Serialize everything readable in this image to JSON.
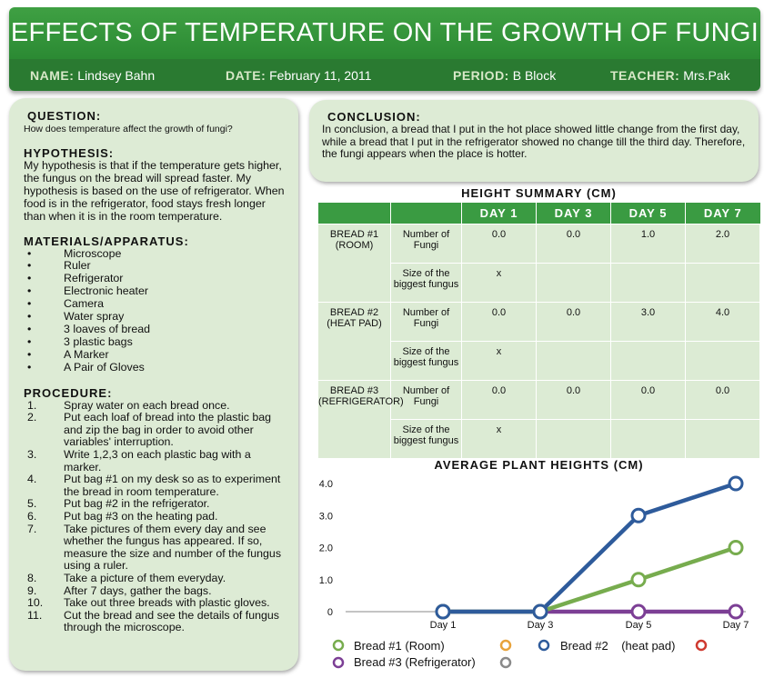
{
  "header": {
    "title": "EFFECTS OF TEMPERATURE ON THE GROWTH OF FUNGI",
    "name_key": "NAME:",
    "name_val": " Lindsey Bahn",
    "date_key": "DATE:",
    "date_val": " February 11, 2011",
    "period_key": "PERIOD:",
    "period_val": " B Block",
    "teacher_key": "TEACHER:",
    "teacher_val": " Mrs.Pak"
  },
  "question": {
    "heading": "QUESTION:",
    "text": "How does temperature affect the growth of fungi?"
  },
  "hypothesis": {
    "heading": "HYPOTHESIS:",
    "text": "My hypothesis is that if the temperature gets higher, the fungus on the bread will spread faster. My hypothesis is based on the use of refrigerator. When food is in the refrigerator, food stays fresh longer than when it is in the room temperature."
  },
  "materials": {
    "heading": "MATERIALS/APPARATUS:",
    "bullet": "•",
    "items": [
      "Microscope",
      "Ruler",
      "Refrigerator",
      "Electronic heater",
      "Camera",
      "Water spray",
      "3 loaves of bread",
      "3 plastic bags",
      "A Marker",
      "A Pair of Gloves"
    ]
  },
  "procedure": {
    "heading": "PROCEDURE:",
    "items": [
      {
        "n": "1.",
        "t": "Spray water on each bread once."
      },
      {
        "n": "2.",
        "t": "Put each loaf of bread into the plastic bag and zip the bag in order to avoid other variables' interruption."
      },
      {
        "n": "3.",
        "t": "Write 1,2,3 on each plastic bag with a marker."
      },
      {
        "n": "4.",
        "t": "Put bag #1 on my desk so as to experiment the bread in room temperature."
      },
      {
        "n": "5.",
        "t": "Put bag #2 in the refrigerator."
      },
      {
        "n": "6.",
        "t": "Put bag #3 on the heating pad."
      },
      {
        "n": "7.",
        "t": "Take pictures of them every day and see whether the fungus has appeared. If so, measure the size and number of the fungus using a ruler."
      },
      {
        "n": "8.",
        "t": "Take a picture of them everyday."
      },
      {
        "n": "9.",
        "t": "After 7 days, gather the bags."
      },
      {
        "n": "10.",
        "t": "Take out three breads with plastic gloves."
      },
      {
        "n": "11.",
        "t": "Cut the bread and see the details of fungus through the microscope."
      }
    ]
  },
  "conclusion": {
    "heading": "CONCLUSION:",
    "text": "In conclusion, a bread that I put in the hot place showed little change from the first day, while a bread that I put in the refrigerator showed no change till the third day. Therefore, the fungi appears when the place is hotter."
  },
  "table": {
    "title": "HEIGHT SUMMARY (CM)",
    "headers": [
      "",
      "",
      "DAY 1",
      "DAY 3",
      "DAY 5",
      "DAY 7"
    ],
    "rows": [
      [
        "BREAD #1 (ROOM)",
        "Number of Fungi",
        "0.0",
        "0.0",
        "1.0",
        "2.0"
      ],
      [
        "",
        "Size of the biggest fungus",
        "x",
        "",
        "",
        ""
      ],
      [
        "BREAD #2 (HEAT PAD)",
        "Number of Fungi",
        "0.0",
        "0.0",
        "3.0",
        "4.0"
      ],
      [
        "",
        "Size of the biggest fungus",
        "x",
        "",
        "",
        ""
      ],
      [
        "BREAD #3 (REFRIGERATOR)",
        "Number of Fungi",
        "0.0",
        "0.0",
        "0.0",
        "0.0"
      ],
      [
        "",
        "Size of the biggest fungus",
        "x",
        "",
        "",
        ""
      ]
    ]
  },
  "chart_data": {
    "type": "line",
    "title": "AVERAGE PLANT HEIGHTS (CM)",
    "categories": [
      "Day 1",
      "Day 3",
      "Day 5",
      "Day 7"
    ],
    "yticks": [
      "0",
      "1.0",
      "2.0",
      "3.0",
      "4.0"
    ],
    "ylim": [
      0,
      4
    ],
    "grid": false,
    "legend_position": "bottom",
    "series": [
      {
        "name": "Bread #1 (Room)",
        "color": "#77ac4e",
        "values": [
          0,
          0,
          1,
          2
        ]
      },
      {
        "name": "Bread #2    (heat pad)",
        "color": "#2e5b9b",
        "values": [
          0,
          0,
          3,
          4
        ]
      },
      {
        "name": "Bread #3 (Refrigerator)",
        "color": "#7c3f95",
        "values": [
          0,
          0,
          0,
          0
        ]
      }
    ],
    "legend_extra_markers": [
      {
        "color": "#e8a33b"
      },
      {
        "color": "#cf3a30"
      },
      {
        "color": "#8a8a8a"
      }
    ]
  }
}
